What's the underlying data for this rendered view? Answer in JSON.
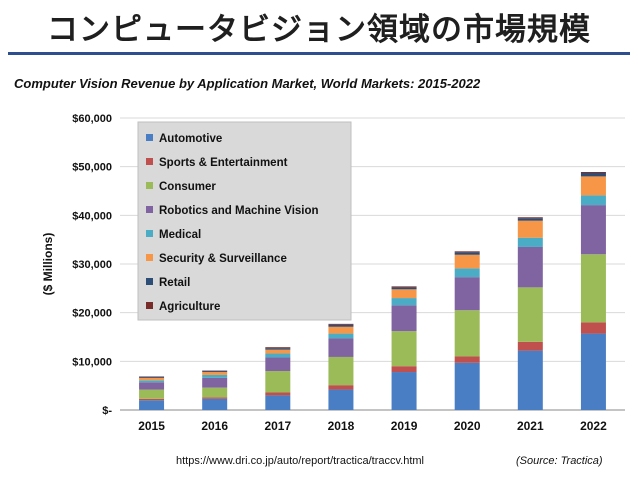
{
  "slide": {
    "title": "コンピュータビジョン領域の市場規模",
    "source_url": "https://www.dri.co.jp/auto/report/tractica/traccv.html",
    "source_note": "(Source: Tractica)"
  },
  "chart_data": {
    "type": "bar",
    "stacked": true,
    "title": "Computer Vision Revenue by Application Market, World Markets: 2015-2022",
    "xlabel": "",
    "ylabel": "($ Millions)",
    "ylim": [
      0,
      60000
    ],
    "yticks": [
      0,
      10000,
      20000,
      30000,
      40000,
      50000,
      60000
    ],
    "ytick_labels": [
      "$-",
      "$10,000",
      "$20,000",
      "$30,000",
      "$40,000",
      "$50,000",
      "$60,000"
    ],
    "grid": true,
    "legend_position": "top-left",
    "categories": [
      "2015",
      "2016",
      "2017",
      "2018",
      "2019",
      "2020",
      "2021",
      "2022"
    ],
    "series": [
      {
        "name": "Automotive",
        "color": "#4a7ec4",
        "values": [
          2000,
          2300,
          3000,
          4200,
          7800,
          9700,
          12200,
          15700
        ]
      },
      {
        "name": "Sports & Entertainment",
        "color": "#c0504d",
        "values": [
          300,
          300,
          600,
          900,
          1200,
          1300,
          1800,
          2300
        ]
      },
      {
        "name": "Consumer",
        "color": "#9bbb59",
        "values": [
          1900,
          2000,
          4400,
          5800,
          7200,
          9500,
          11200,
          14000
        ]
      },
      {
        "name": "Robotics and Machine Vision",
        "color": "#8064a2",
        "values": [
          1500,
          2000,
          2800,
          3800,
          5300,
          6800,
          8300,
          10100
        ]
      },
      {
        "name": "Medical",
        "color": "#4bacc6",
        "values": [
          400,
          600,
          800,
          1000,
          1500,
          1800,
          1900,
          2000
        ]
      },
      {
        "name": "Security & Surveillance",
        "color": "#f79646",
        "values": [
          500,
          600,
          800,
          1400,
          1800,
          2800,
          3500,
          3900
        ]
      },
      {
        "name": "Retail",
        "color": "#2c4d75",
        "values": [
          200,
          200,
          300,
          400,
          400,
          500,
          500,
          700
        ]
      },
      {
        "name": "Agriculture",
        "color": "#772c2a",
        "values": [
          100,
          100,
          200,
          200,
          200,
          200,
          200,
          200
        ]
      }
    ]
  }
}
